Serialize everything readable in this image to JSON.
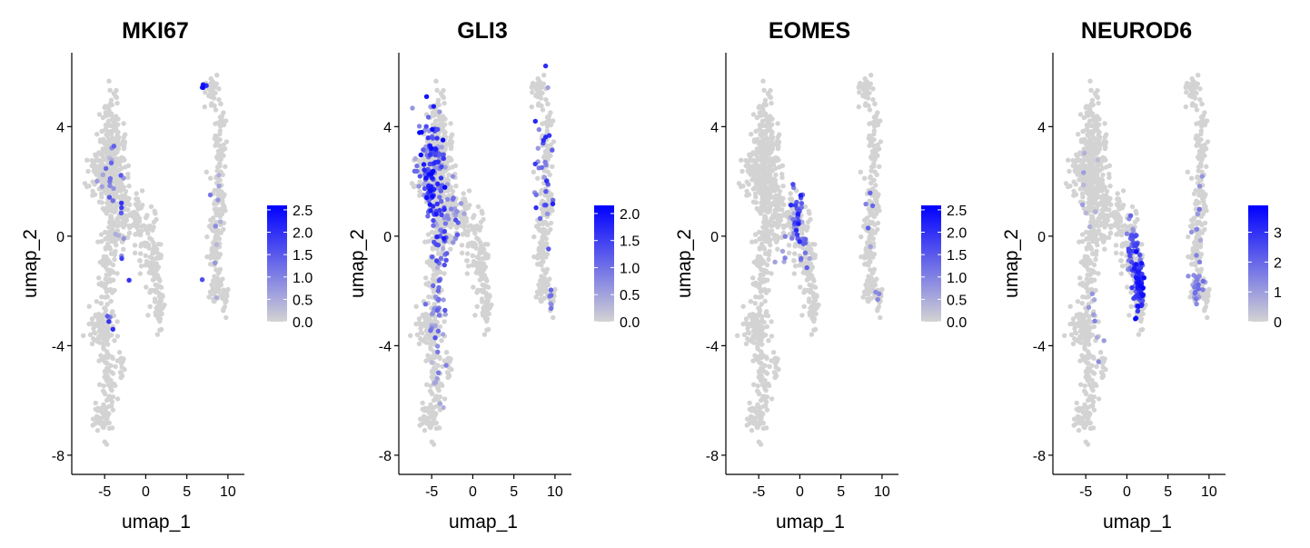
{
  "chart_data": [
    {
      "type": "scatter",
      "title": "MKI67",
      "xlabel": "umap_1",
      "ylabel": "umap_2",
      "xticks": [
        -5,
        0,
        5,
        10
      ],
      "yticks": [
        -8,
        -4,
        0,
        4
      ],
      "xlim": [
        -9,
        12
      ],
      "ylim": [
        -8.7,
        6.7
      ],
      "legend": {
        "ticks": [
          0.0,
          0.5,
          1.0,
          1.5,
          2.0,
          2.5
        ],
        "tick_labels": [
          "0.0",
          "0.5",
          "1.0",
          "1.5",
          "2.0",
          "2.5"
        ],
        "max": 2.6,
        "colors": [
          "#d3d3d3",
          "#0000ff"
        ],
        "placement": "right"
      },
      "expressing_regions": [
        {
          "x": -4.6,
          "y": 2.4,
          "sx": 1.0,
          "sy": 1.2,
          "n": 14,
          "lo": 0.3,
          "hi": 1.8
        },
        {
          "x": -3.2,
          "y": 0.2,
          "sx": 1.0,
          "sy": 1.6,
          "n": 12,
          "lo": 0.3,
          "hi": 2.0
        },
        {
          "x": -4.5,
          "y": -3.3,
          "sx": 0.5,
          "sy": 0.5,
          "n": 4,
          "lo": 0.8,
          "hi": 2.5
        },
        {
          "x": 8.2,
          "y": 0.0,
          "sx": 1.4,
          "sy": 3.0,
          "n": 10,
          "lo": 0.3,
          "hi": 1.8
        },
        {
          "x": 6.9,
          "y": 5.5,
          "sx": 0.3,
          "sy": 0.2,
          "n": 4,
          "lo": 2.0,
          "hi": 2.5
        }
      ]
    },
    {
      "type": "scatter",
      "title": "GLI3",
      "xlabel": "umap_1",
      "ylabel": "umap_2",
      "xticks": [
        -5,
        0,
        5,
        10
      ],
      "yticks": [
        -8,
        -4,
        0,
        4
      ],
      "xlim": [
        -9,
        12
      ],
      "ylim": [
        -8.7,
        6.7
      ],
      "legend": {
        "ticks": [
          0.0,
          0.5,
          1.0,
          1.5,
          2.0
        ],
        "tick_labels": [
          "0.0",
          "0.5",
          "1.0",
          "1.5",
          "2.0"
        ],
        "max": 2.15,
        "colors": [
          "#d3d3d3",
          "#0000ff"
        ],
        "placement": "right"
      },
      "expressing_regions": [
        {
          "x": -5.0,
          "y": 2.3,
          "sx": 1.4,
          "sy": 1.5,
          "n": 150,
          "lo": 0.4,
          "hi": 2.1
        },
        {
          "x": -3.8,
          "y": 0.0,
          "sx": 0.9,
          "sy": 1.2,
          "n": 35,
          "lo": 0.3,
          "hi": 1.6
        },
        {
          "x": -2.0,
          "y": 0.5,
          "sx": 0.8,
          "sy": 0.8,
          "n": 15,
          "lo": 0.3,
          "hi": 1.4
        },
        {
          "x": -4.4,
          "y": -2.5,
          "sx": 0.9,
          "sy": 1.0,
          "n": 30,
          "lo": 0.3,
          "hi": 1.4
        },
        {
          "x": -4.5,
          "y": -5.0,
          "sx": 0.8,
          "sy": 1.2,
          "n": 10,
          "lo": 0.2,
          "hi": 1.0
        },
        {
          "x": 8.5,
          "y": 2.0,
          "sx": 1.0,
          "sy": 2.8,
          "n": 30,
          "lo": 0.4,
          "hi": 1.8
        },
        {
          "x": 9.5,
          "y": -2.2,
          "sx": 0.6,
          "sy": 0.4,
          "n": 6,
          "lo": 0.4,
          "hi": 1.2
        }
      ]
    },
    {
      "type": "scatter",
      "title": "EOMES",
      "xlabel": "umap_1",
      "ylabel": "umap_2",
      "xticks": [
        -5,
        0,
        5,
        10
      ],
      "yticks": [
        -8,
        -4,
        0,
        4
      ],
      "xlim": [
        -9,
        12
      ],
      "ylim": [
        -8.7,
        6.7
      ],
      "legend": {
        "ticks": [
          0.0,
          0.5,
          1.0,
          1.5,
          2.0,
          2.5
        ],
        "tick_labels": [
          "0.0",
          "0.5",
          "1.0",
          "1.5",
          "2.0",
          "2.5"
        ],
        "max": 2.6,
        "colors": [
          "#d3d3d3",
          "#0000ff"
        ],
        "placement": "right"
      },
      "expressing_regions": [
        {
          "x": -0.3,
          "y": 0.7,
          "sx": 0.7,
          "sy": 0.8,
          "n": 45,
          "lo": 0.4,
          "hi": 2.3
        },
        {
          "x": 0.6,
          "y": -0.6,
          "sx": 0.6,
          "sy": 0.7,
          "n": 12,
          "lo": 0.3,
          "hi": 1.5
        },
        {
          "x": -2.0,
          "y": -0.6,
          "sx": 0.6,
          "sy": 0.6,
          "n": 5,
          "lo": 0.3,
          "hi": 1.0
        },
        {
          "x": 8.6,
          "y": 0.5,
          "sx": 0.8,
          "sy": 1.5,
          "n": 5,
          "lo": 0.4,
          "hi": 1.5
        },
        {
          "x": 9.6,
          "y": -2.2,
          "sx": 0.4,
          "sy": 0.3,
          "n": 3,
          "lo": 0.5,
          "hi": 1.2
        }
      ]
    },
    {
      "type": "scatter",
      "title": "NEUROD6",
      "xlabel": "umap_1",
      "ylabel": "umap_2",
      "xticks": [
        -5,
        0,
        5,
        10
      ],
      "yticks": [
        -8,
        -4,
        0,
        4
      ],
      "xlim": [
        -9,
        12
      ],
      "ylim": [
        -8.7,
        6.7
      ],
      "legend": {
        "ticks": [
          0,
          1,
          2,
          3
        ],
        "tick_labels": [
          "0",
          "1",
          "2",
          "3"
        ],
        "max": 3.9,
        "colors": [
          "#d3d3d3",
          "#0000ff"
        ],
        "placement": "right"
      },
      "expressing_regions": [
        {
          "x": 0.6,
          "y": -0.3,
          "sx": 0.55,
          "sy": 0.8,
          "n": 40,
          "lo": 0.8,
          "hi": 2.8
        },
        {
          "x": 1.4,
          "y": -1.8,
          "sx": 0.5,
          "sy": 0.9,
          "n": 110,
          "lo": 1.5,
          "hi": 3.8
        },
        {
          "x": 8.5,
          "y": -1.9,
          "sx": 0.9,
          "sy": 0.5,
          "n": 25,
          "lo": 0.5,
          "hi": 2.0
        },
        {
          "x": 8.7,
          "y": 0.5,
          "sx": 0.7,
          "sy": 1.5,
          "n": 10,
          "lo": 0.5,
          "hi": 1.8
        },
        {
          "x": -4.5,
          "y": 2.0,
          "sx": 1.4,
          "sy": 1.8,
          "n": 8,
          "lo": 0.3,
          "hi": 1.5
        },
        {
          "x": -3.5,
          "y": -3.5,
          "sx": 1.2,
          "sy": 2.0,
          "n": 8,
          "lo": 0.5,
          "hi": 1.8
        }
      ]
    }
  ],
  "embedding_shape": [
    {
      "x": -4.3,
      "y": 2.8,
      "sx": 1.1,
      "sy": 1.4,
      "n": 300
    },
    {
      "x": -5.8,
      "y": 2.4,
      "sx": 1.0,
      "sy": 0.5,
      "n": 50
    },
    {
      "x": -4.1,
      "y": 0.5,
      "sx": 0.6,
      "sy": 1.0,
      "n": 70
    },
    {
      "x": -2.6,
      "y": 0.8,
      "sx": 0.7,
      "sy": 0.9,
      "n": 60
    },
    {
      "x": -0.7,
      "y": 0.3,
      "sx": 0.8,
      "sy": 1.0,
      "n": 70
    },
    {
      "x": 0.9,
      "y": -1.0,
      "sx": 0.7,
      "sy": 1.1,
      "n": 80
    },
    {
      "x": 1.6,
      "y": -2.6,
      "sx": 0.4,
      "sy": 0.6,
      "n": 40
    },
    {
      "x": -4.7,
      "y": -1.6,
      "sx": 0.7,
      "sy": 1.2,
      "n": 60
    },
    {
      "x": -5.2,
      "y": -3.4,
      "sx": 1.0,
      "sy": 0.6,
      "n": 90
    },
    {
      "x": -4.6,
      "y": -5.3,
      "sx": 0.7,
      "sy": 1.1,
      "n": 70
    },
    {
      "x": -5.5,
      "y": -6.6,
      "sx": 0.7,
      "sy": 0.4,
      "n": 40
    },
    {
      "x": -3.0,
      "y": -4.7,
      "sx": 0.3,
      "sy": 0.5,
      "n": 15
    },
    {
      "x": 8.0,
      "y": 5.3,
      "sx": 0.7,
      "sy": 0.4,
      "n": 40
    },
    {
      "x": 8.9,
      "y": 3.5,
      "sx": 0.5,
      "sy": 1.0,
      "n": 50
    },
    {
      "x": 8.7,
      "y": 1.3,
      "sx": 0.6,
      "sy": 1.0,
      "n": 60
    },
    {
      "x": 8.5,
      "y": -0.6,
      "sx": 0.6,
      "sy": 0.6,
      "n": 40
    },
    {
      "x": 8.6,
      "y": -1.8,
      "sx": 0.6,
      "sy": 0.4,
      "n": 40
    },
    {
      "x": 9.6,
      "y": -2.3,
      "sx": 0.3,
      "sy": 0.3,
      "n": 15
    }
  ],
  "colors": {
    "low": "#d3d3d3",
    "high": "#0000ff",
    "axis": "#000000",
    "background": "#ffffff"
  }
}
